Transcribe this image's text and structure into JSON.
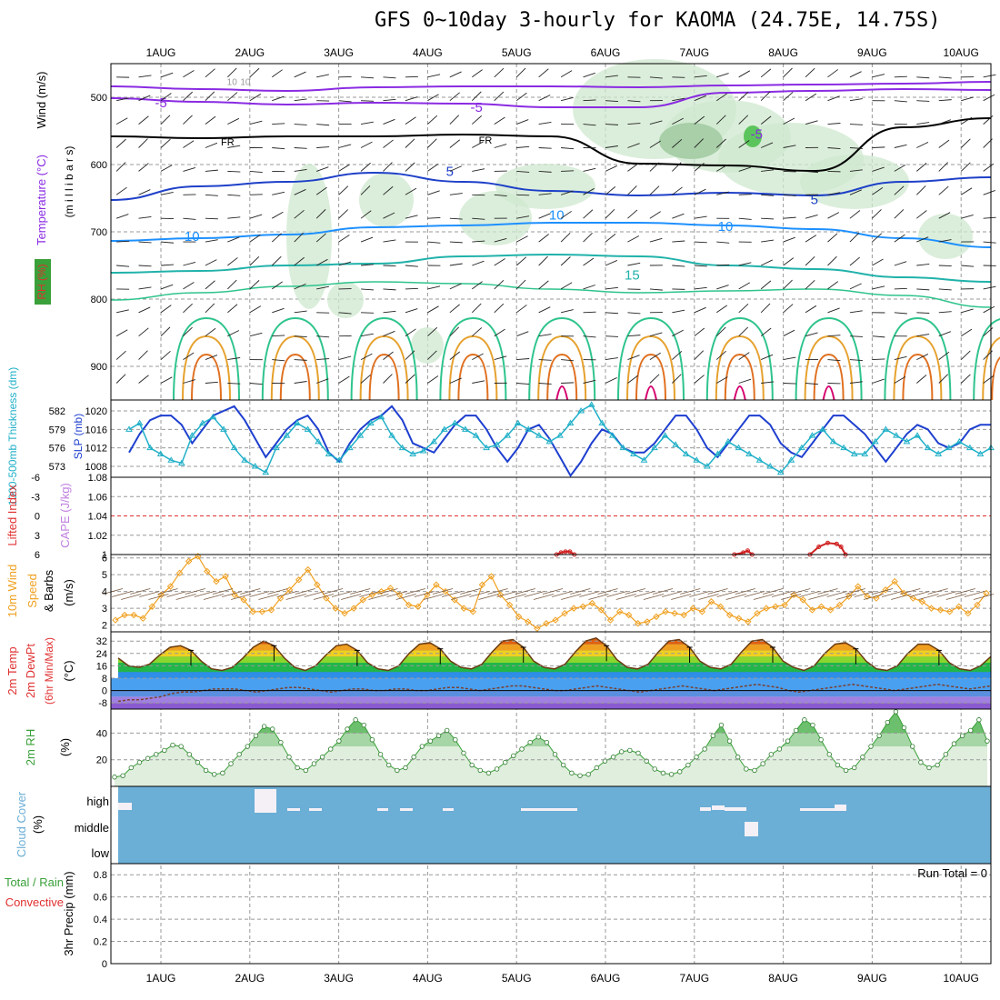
{
  "title": "GFS 0~10day 3-hourly for KAOMA (24.75E, 14.75S)",
  "colors": {
    "temp_neg": "#8a2be2",
    "temp_5": "#1e40c8",
    "temp_10": "#1e90ff",
    "temp_15": "#20b2aa",
    "temp_20": "#2ec48c",
    "temp_25": "#e6a12e",
    "temp_30": "#e07020",
    "temp_35": "#d6006e",
    "rh_fill": "#cfe8cf",
    "slp": "#1e3fcf",
    "thick": "#20b0c8",
    "wind": "#f0a020",
    "cape_ref": "#e03030",
    "cape": "#d02020",
    "rh2m": "#3aa03a",
    "cloud": "#6baed6",
    "grid": "#999999"
  },
  "chart_data": [
    {
      "id": "upper_air",
      "type": "contour",
      "x_dates": [
        "1AUG",
        "2AUG",
        "3AUG",
        "4AUG",
        "5AUG",
        "6AUG",
        "7AUG",
        "8AUG",
        "9AUG",
        "10AUG"
      ],
      "ylabel_temp": "Temperature (°C)",
      "ylabel_wind": "Wind (m/s)",
      "ylabel_rh": "RH (%)",
      "ylabel_pressure": "(m i l l i b a r s)",
      "y_ticks": [
        500,
        600,
        700,
        800,
        900
      ],
      "ylim": [
        450,
        950
      ],
      "contour_labels": [
        {
          "text": "-5",
          "level": -5,
          "day": 0.0,
          "p": 508
        },
        {
          "text": "-5",
          "level": -5,
          "day": 3.55,
          "p": 515
        },
        {
          "text": "-5",
          "level": -5,
          "day": 6.7,
          "p": 555
        },
        {
          "text": "FR",
          "level": 0,
          "day": 0.75,
          "p": 565
        },
        {
          "text": "FR",
          "level": 0,
          "day": 3.65,
          "p": 562
        },
        {
          "text": "5",
          "level": 5,
          "day": 3.25,
          "p": 610
        },
        {
          "text": "5",
          "level": 5,
          "day": 7.35,
          "p": 652
        },
        {
          "text": "10",
          "level": 10,
          "day": 0.35,
          "p": 707
        },
        {
          "text": "10",
          "level": 10,
          "day": 6.35,
          "p": 692
        },
        {
          "text": "15",
          "level": 15,
          "day": 5.3,
          "p": 764
        },
        {
          "text": "10",
          "level": 10,
          "day": 0.8,
          "p": 475
        },
        {
          "text": "10",
          "level": 10,
          "day": 0.95,
          "p": 475
        },
        {
          "text": "10",
          "level": 10,
          "day": 4.45,
          "p": 675
        }
      ]
    },
    {
      "id": "slp_thickness",
      "type": "line",
      "ylabel": "1000-500mb Thickness (dm)",
      "ylabel2": "SLP (mb)",
      "left_ticks": [
        "582",
        "579",
        "576",
        "573"
      ],
      "right_ticks": [
        "1020",
        "1016",
        "1012",
        "1008"
      ],
      "series": [
        {
          "name": "SLP (mb)",
          "values": [
            1011,
            1015,
            1018,
            1019,
            1019,
            1017,
            1013,
            1016,
            1019,
            1020,
            1021,
            1018,
            1014,
            1010,
            1013,
            1016,
            1018,
            1019,
            1016,
            1011,
            1009,
            1013,
            1016,
            1018,
            1019,
            1021,
            1018,
            1013,
            1012,
            1011,
            1014,
            1017,
            1019,
            1019,
            1016,
            1012,
            1009,
            1012,
            1016,
            1017,
            1014,
            1010,
            1006,
            1009,
            1013,
            1016,
            1015,
            1012,
            1011,
            1011,
            1013,
            1016,
            1019,
            1019,
            1016,
            1012,
            1010,
            1013,
            1016,
            1019,
            1019,
            1017,
            1013,
            1011,
            1010,
            1013,
            1016,
            1019,
            1019,
            1017,
            1015,
            1012,
            1009,
            1012,
            1015,
            1017,
            1016,
            1013,
            1012,
            1013,
            1016,
            1017,
            1017
          ]
        },
        {
          "name": "Thickness (dm)",
          "values": [
            579,
            580,
            576,
            575,
            574,
            573.5,
            578,
            580,
            581,
            579,
            576,
            574,
            573,
            572,
            576,
            578,
            580,
            579,
            577,
            575,
            574,
            576,
            578,
            580,
            581,
            578,
            576,
            575,
            575.5,
            577,
            579,
            580,
            579,
            578,
            576,
            576.5,
            578,
            580,
            579,
            578,
            577,
            578,
            580,
            582,
            583,
            580,
            578,
            576,
            575,
            574,
            576,
            578,
            576.5,
            575,
            574,
            573,
            575,
            577,
            576,
            575,
            574,
            573,
            572,
            574,
            576,
            578,
            579,
            577,
            576,
            575,
            575,
            577,
            579,
            578,
            577,
            578,
            576,
            575,
            576,
            577,
            576,
            575,
            576
          ]
        }
      ]
    },
    {
      "id": "cape_li",
      "type": "line",
      "ylabel": "Lifted Index",
      "ylabel2": "CAPE (J/kg)",
      "left_ticks": [
        "-6",
        "-3",
        "0",
        "3",
        "6"
      ],
      "right_ticks": [
        "1.08",
        "1.06",
        "1.04",
        "1.02",
        "1"
      ],
      "ylim": [
        1.0,
        1.08
      ],
      "series": [
        {
          "name": "CAPE bump 1",
          "x": [
            4.45,
            4.5,
            4.55,
            4.6,
            4.65
          ],
          "values": [
            1.0,
            1.002,
            1.003,
            1.003,
            1.0
          ]
        },
        {
          "name": "CAPE bump 2",
          "x": [
            6.45,
            6.55,
            6.6,
            6.65
          ],
          "values": [
            1.0,
            1.002,
            1.004,
            1.0
          ]
        },
        {
          "name": "CAPE bump 3",
          "x": [
            7.3,
            7.4,
            7.5,
            7.6,
            7.65,
            7.7
          ],
          "values": [
            1.0,
            1.008,
            1.012,
            1.011,
            1.008,
            1.0
          ]
        }
      ]
    },
    {
      "id": "wind10m",
      "type": "line",
      "ylabel": "10m Wind Speed & Barbs",
      "ylabel_units": "(m/s)",
      "y_ticks": [
        "6",
        "5",
        "4",
        "3",
        "2"
      ],
      "ylim": [
        1.6,
        6.2
      ],
      "series": [
        {
          "name": "10m wind speed",
          "values": [
            2.3,
            2.6,
            2.6,
            2.4,
            3.1,
            3.8,
            4.3,
            5.1,
            5.8,
            6.1,
            5.2,
            4.6,
            4.9,
            3.8,
            3.5,
            2.8,
            2.8,
            2.9,
            3.6,
            4.1,
            4.7,
            5.3,
            4.4,
            3.6,
            3.0,
            2.7,
            3.0,
            3.5,
            3.8,
            4.0,
            4.2,
            3.8,
            3.2,
            3.1,
            3.8,
            4.4,
            4.0,
            3.5,
            3.0,
            2.8,
            4.4,
            4.9,
            3.8,
            3.2,
            2.5,
            2.2,
            1.8,
            2.1,
            2.3,
            2.7,
            3.0,
            3.1,
            3.3,
            2.9,
            2.3,
            2.8,
            2.6,
            2.1,
            2.2,
            2.5,
            2.8,
            2.7,
            2.6,
            3.0,
            2.8,
            3.4,
            3.1,
            2.6,
            2.4,
            2.2,
            2.7,
            3.0,
            3.1,
            3.2,
            3.8,
            3.5,
            2.9,
            3.1,
            2.9,
            3.2,
            3.7,
            4.3,
            3.7,
            3.6,
            4.1,
            4.6,
            3.9,
            3.6,
            3.4,
            3.0,
            2.9,
            2.8,
            3.1,
            2.7,
            3.2,
            3.9
          ]
        }
      ]
    },
    {
      "id": "temp2m",
      "type": "area",
      "ylabel": "2m Temp 2m DewPt (6hr Min/Max)",
      "ylabel_units": "(°C)",
      "y_ticks": [
        "32",
        "24",
        "16",
        "8",
        "0",
        "-8"
      ],
      "ylim": [
        -12,
        38
      ],
      "series": [
        {
          "name": "2m temp",
          "values": [
            21,
            16,
            15,
            17,
            23,
            28,
            29,
            26,
            19,
            14,
            13,
            15,
            21,
            28,
            32,
            29,
            21,
            15,
            13,
            16,
            23,
            29,
            30,
            26,
            18,
            14,
            13,
            16,
            24,
            30,
            31,
            27,
            19,
            15,
            14,
            17,
            25,
            32,
            33,
            28,
            19,
            15,
            14,
            17,
            25,
            32,
            34,
            29,
            20,
            15,
            14,
            17,
            25,
            32,
            33,
            28,
            19,
            15,
            14,
            17,
            25,
            32,
            33,
            28,
            19,
            15,
            13,
            16,
            24,
            30,
            31,
            27,
            19,
            14,
            13,
            16,
            24,
            30,
            30,
            26,
            18,
            14,
            13,
            16,
            22
          ]
        },
        {
          "name": "2m dewpoint",
          "values": [
            -7,
            -6,
            -6,
            -5,
            -4,
            -2,
            -1,
            -1,
            0,
            1,
            1,
            1,
            0,
            -1,
            0,
            1,
            2,
            2,
            1,
            0,
            -1,
            0,
            1,
            1,
            0,
            0,
            1,
            1,
            0,
            0,
            1,
            2,
            2,
            1,
            0,
            1,
            2,
            3,
            3,
            2,
            1,
            0,
            0,
            1,
            2,
            3,
            2,
            1,
            0,
            -1,
            0,
            1,
            2,
            3,
            2,
            1,
            0,
            1,
            2,
            3,
            4,
            3,
            2,
            0,
            -1,
            0,
            1,
            2,
            3,
            4,
            3,
            2,
            1,
            0,
            1,
            2,
            3,
            4,
            3,
            2,
            1,
            2,
            3
          ]
        }
      ]
    },
    {
      "id": "rh2m",
      "type": "area",
      "ylabel": "2m RH",
      "ylabel_units": "(%)",
      "y_ticks": [
        "40",
        "20"
      ],
      "ylim": [
        0,
        58
      ],
      "series": [
        {
          "name": "2m RH",
          "values": [
            7,
            8,
            14,
            18,
            21,
            24,
            27,
            31,
            30,
            24,
            18,
            12,
            9,
            10,
            17,
            24,
            30,
            38,
            45,
            43,
            33,
            22,
            14,
            12,
            17,
            22,
            28,
            34,
            43,
            50,
            46,
            35,
            24,
            16,
            12,
            14,
            22,
            30,
            34,
            38,
            42,
            35,
            25,
            16,
            12,
            10,
            13,
            18,
            23,
            28,
            33,
            37,
            33,
            24,
            16,
            10,
            8,
            9,
            14,
            19,
            22,
            26,
            27,
            25,
            19,
            13,
            10,
            9,
            11,
            16,
            22,
            28,
            38,
            46,
            34,
            22,
            13,
            12,
            17,
            24,
            28,
            34,
            42,
            50,
            46,
            35,
            24,
            16,
            12,
            14,
            22,
            30,
            38,
            48,
            56,
            44,
            30,
            18,
            14,
            16,
            24,
            32,
            38,
            42,
            50,
            34
          ]
        }
      ]
    },
    {
      "id": "cloud_cover",
      "type": "bar",
      "ylabel": "Cloud Cover",
      "ylabel_units": "(%)",
      "levels": [
        "high",
        "middle",
        "low"
      ]
    },
    {
      "id": "precip",
      "type": "bar",
      "ylabel": "Total / Rain",
      "ylabel2": "Convective",
      "ylabel_units": "3hr Precip (mm)",
      "y_ticks": [
        "0.8",
        "0.6",
        "0.4",
        "0.2",
        "0"
      ],
      "ylim": [
        0,
        0.9
      ],
      "run_total": "Run Total = 0",
      "values": []
    }
  ]
}
